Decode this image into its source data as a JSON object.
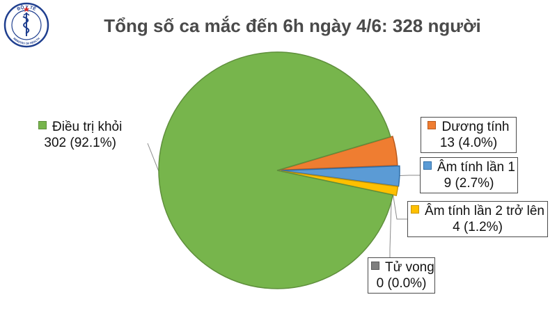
{
  "logo": {
    "top_text": "BỘ Y TẾ",
    "bottom_text": "MINISTRY OF HEALTH",
    "colors": {
      "ring": "#1f3f8f",
      "fill": "#ffffff",
      "accent": "#d62828"
    }
  },
  "chart_data": {
    "type": "pie",
    "title": "Tổng số ca mắc đến 6h ngày 4/6: 328 người",
    "total": 328,
    "exploded": true,
    "slices": [
      {
        "name": "Điều trị khỏi",
        "value": 302,
        "percent_label": "302 (92.1%)",
        "color": "#77b54c",
        "stroke": "#5f8f3c"
      },
      {
        "name": "Dương tính",
        "value": 13,
        "percent_label": "13 (4.0%)",
        "color": "#ef7d31",
        "stroke": "#b85a1e"
      },
      {
        "name": "Âm tính lần 1",
        "value": 9,
        "percent_label": "9 (2.7%)",
        "color": "#5b9bd5",
        "stroke": "#2f6ea8"
      },
      {
        "name": "Âm tính lần 2 trở lên",
        "value": 4,
        "percent_label": "4 (1.2%)",
        "color": "#ffc000",
        "stroke": "#c79400"
      },
      {
        "name": "Tử vong",
        "value": 0,
        "percent_label": "0 (0.0%)",
        "color": "#7f7f7f",
        "stroke": "#5a5a5a"
      }
    ]
  }
}
